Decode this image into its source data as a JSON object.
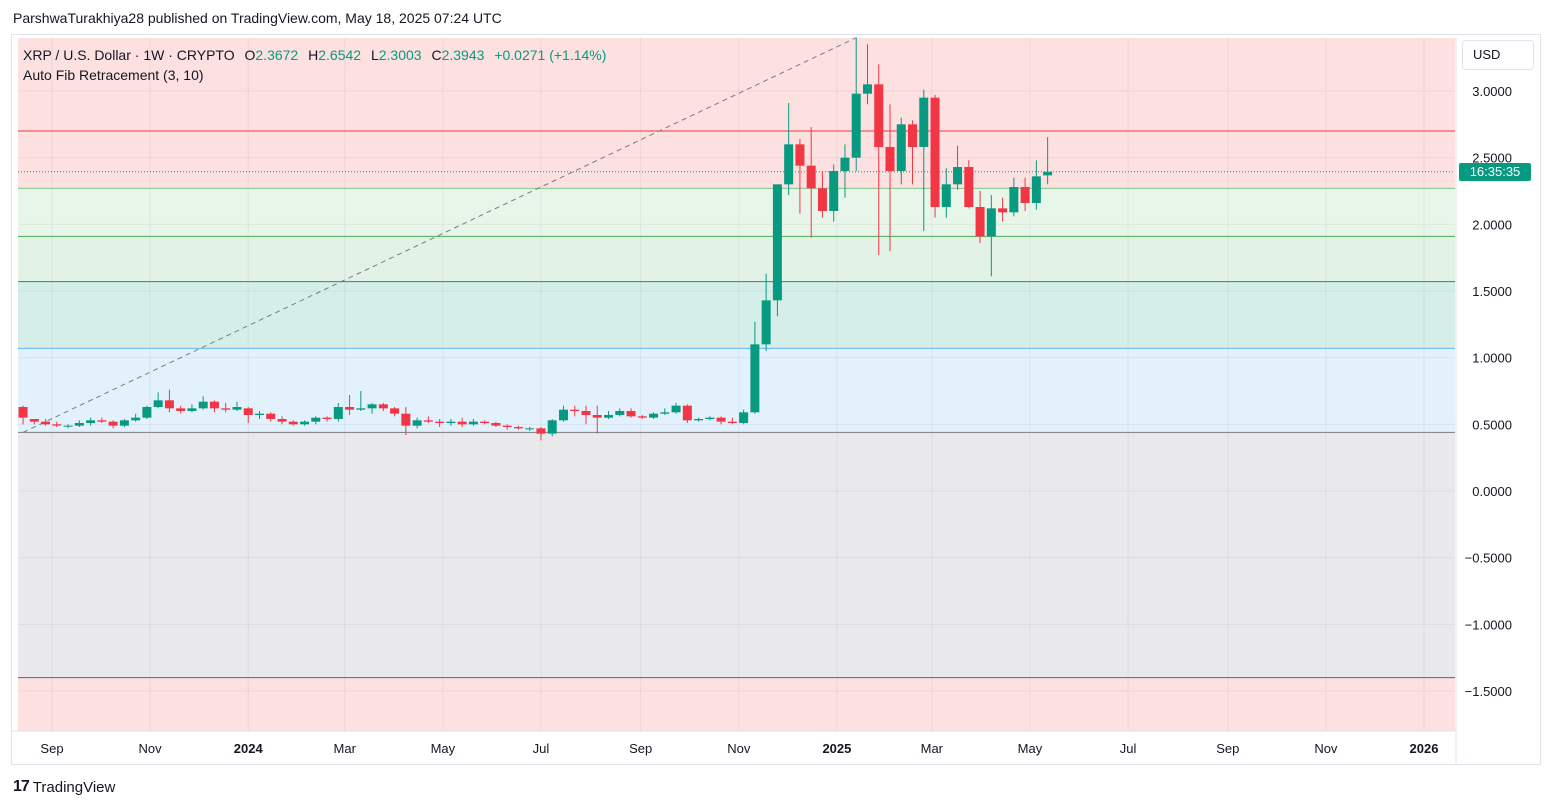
{
  "publisher": "ParshwaTurakhiya28 published on TradingView.com, May 18, 2025 07:24 UTC",
  "legend": {
    "symbol": "XRP / U.S. Dollar · 1W · CRYPTO",
    "open_label": "O",
    "open": "2.3672",
    "high_label": "H",
    "high": "2.6542",
    "low_label": "L",
    "low": "2.3003",
    "close_label": "C",
    "close": "2.3943",
    "change": "+0.0271 (+1.14%)",
    "indicator": "Auto Fib Retracement (3, 10)"
  },
  "currency": "USD",
  "countdown": "16:35:35",
  "footer": {
    "logo": "17",
    "brand": "TradingView"
  },
  "colors": {
    "up": "#089981",
    "down": "#f23645",
    "countdown_bg": "#089981"
  },
  "chart_data": {
    "type": "candlestick",
    "interval": "1W",
    "ylim": [
      -1.9,
      3.4
    ],
    "y_ticks": [
      "3.0000",
      "2.5000",
      "2.0000",
      "1.5000",
      "1.0000",
      "0.5000",
      "0.0000",
      "−0.5000",
      "−1.0000",
      "−1.5000"
    ],
    "y_tick_values": [
      3.0,
      2.5,
      2.0,
      1.5,
      1.0,
      0.5,
      0.0,
      -0.5,
      -1.0,
      -1.5
    ],
    "x_ticks": [
      {
        "label": "Sep",
        "date": "2023-09-01",
        "bold": false
      },
      {
        "label": "Nov",
        "date": "2023-11-01",
        "bold": false
      },
      {
        "label": "2024",
        "date": "2024-01-01",
        "bold": true
      },
      {
        "label": "Mar",
        "date": "2024-03-01",
        "bold": false
      },
      {
        "label": "May",
        "date": "2024-05-01",
        "bold": false
      },
      {
        "label": "Jul",
        "date": "2024-07-01",
        "bold": false
      },
      {
        "label": "Sep",
        "date": "2024-09-01",
        "bold": false
      },
      {
        "label": "Nov",
        "date": "2024-11-01",
        "bold": false
      },
      {
        "label": "2025",
        "date": "2025-01-01",
        "bold": true
      },
      {
        "label": "Mar",
        "date": "2025-03-01",
        "bold": false
      },
      {
        "label": "May",
        "date": "2025-05-01",
        "bold": false
      },
      {
        "label": "Jul",
        "date": "2025-07-01",
        "bold": false
      },
      {
        "label": "Sep",
        "date": "2025-09-01",
        "bold": false
      },
      {
        "label": "Nov",
        "date": "2025-11-01",
        "bold": false
      },
      {
        "label": "2026",
        "date": "2026-01-01",
        "bold": true
      }
    ],
    "fib_levels": [
      {
        "price": 2.7,
        "color": "#f23645",
        "fill": "#fde0e0"
      },
      {
        "price": 2.27,
        "color": "#81c784",
        "fill": "#e8f5e9"
      },
      {
        "price": 1.91,
        "color": "#4caf50",
        "fill": "#e3f2e6"
      },
      {
        "price": 1.57,
        "color": "#089981",
        "fill": "#d6eee9"
      },
      {
        "price": 1.07,
        "color": "#64b5f6",
        "fill": "#e3f1fc"
      },
      {
        "price": 0.44,
        "color": "#787b86",
        "fill": "#e9e9ec"
      },
      {
        "price": -1.4,
        "color": "#2962ff",
        "fill": "#e0e6fd"
      }
    ],
    "top_fill": "#fde0e0",
    "bottom_fill": "#fde0e0",
    "trend_line": {
      "from": {
        "date": "2023-08-14",
        "price": 0.44
      },
      "to": {
        "date": "2025-01-13",
        "price": 3.4
      }
    },
    "last_price_line": 2.3943,
    "candles": [
      [
        "2023-08-14",
        0.63,
        0.64,
        0.5,
        0.55
      ],
      [
        "2023-08-21",
        0.54,
        0.54,
        0.5,
        0.52
      ],
      [
        "2023-08-28",
        0.52,
        0.54,
        0.49,
        0.5
      ],
      [
        "2023-09-04",
        0.5,
        0.52,
        0.48,
        0.49
      ],
      [
        "2023-09-11",
        0.49,
        0.5,
        0.47,
        0.49
      ],
      [
        "2023-09-18",
        0.49,
        0.53,
        0.48,
        0.51
      ],
      [
        "2023-09-25",
        0.51,
        0.55,
        0.49,
        0.53
      ],
      [
        "2023-10-02",
        0.53,
        0.55,
        0.51,
        0.52
      ],
      [
        "2023-10-09",
        0.52,
        0.53,
        0.47,
        0.49
      ],
      [
        "2023-10-16",
        0.49,
        0.54,
        0.48,
        0.53
      ],
      [
        "2023-10-23",
        0.53,
        0.58,
        0.52,
        0.55
      ],
      [
        "2023-10-30",
        0.55,
        0.64,
        0.54,
        0.63
      ],
      [
        "2023-11-06",
        0.63,
        0.74,
        0.62,
        0.68
      ],
      [
        "2023-11-13",
        0.68,
        0.76,
        0.59,
        0.62
      ],
      [
        "2023-11-20",
        0.62,
        0.64,
        0.58,
        0.6
      ],
      [
        "2023-11-27",
        0.6,
        0.65,
        0.59,
        0.62
      ],
      [
        "2023-12-04",
        0.62,
        0.71,
        0.61,
        0.67
      ],
      [
        "2023-12-11",
        0.67,
        0.68,
        0.59,
        0.62
      ],
      [
        "2023-12-18",
        0.62,
        0.66,
        0.59,
        0.61
      ],
      [
        "2023-12-25",
        0.61,
        0.67,
        0.6,
        0.63
      ],
      [
        "2024-01-01",
        0.62,
        0.63,
        0.51,
        0.57
      ],
      [
        "2024-01-08",
        0.57,
        0.6,
        0.54,
        0.58
      ],
      [
        "2024-01-15",
        0.58,
        0.59,
        0.52,
        0.54
      ],
      [
        "2024-01-22",
        0.54,
        0.56,
        0.5,
        0.52
      ],
      [
        "2024-01-29",
        0.52,
        0.53,
        0.49,
        0.5
      ],
      [
        "2024-02-05",
        0.5,
        0.53,
        0.49,
        0.52
      ],
      [
        "2024-02-12",
        0.52,
        0.56,
        0.5,
        0.55
      ],
      [
        "2024-02-19",
        0.55,
        0.56,
        0.52,
        0.54
      ],
      [
        "2024-02-26",
        0.54,
        0.66,
        0.52,
        0.63
      ],
      [
        "2024-03-04",
        0.63,
        0.72,
        0.57,
        0.61
      ],
      [
        "2024-03-11",
        0.61,
        0.75,
        0.6,
        0.62
      ],
      [
        "2024-03-18",
        0.62,
        0.66,
        0.58,
        0.65
      ],
      [
        "2024-03-25",
        0.65,
        0.66,
        0.6,
        0.62
      ],
      [
        "2024-04-01",
        0.62,
        0.63,
        0.56,
        0.58
      ],
      [
        "2024-04-08",
        0.58,
        0.63,
        0.42,
        0.49
      ],
      [
        "2024-04-15",
        0.49,
        0.55,
        0.47,
        0.53
      ],
      [
        "2024-04-22",
        0.53,
        0.56,
        0.51,
        0.52
      ],
      [
        "2024-04-29",
        0.52,
        0.54,
        0.48,
        0.51
      ],
      [
        "2024-05-06",
        0.51,
        0.54,
        0.49,
        0.52
      ],
      [
        "2024-05-13",
        0.52,
        0.55,
        0.48,
        0.5
      ],
      [
        "2024-05-20",
        0.5,
        0.54,
        0.49,
        0.52
      ],
      [
        "2024-05-27",
        0.52,
        0.53,
        0.5,
        0.51
      ],
      [
        "2024-06-03",
        0.51,
        0.52,
        0.48,
        0.49
      ],
      [
        "2024-06-10",
        0.49,
        0.5,
        0.46,
        0.48
      ],
      [
        "2024-06-17",
        0.48,
        0.49,
        0.46,
        0.47
      ],
      [
        "2024-06-24",
        0.47,
        0.48,
        0.45,
        0.47
      ],
      [
        "2024-07-01",
        0.47,
        0.48,
        0.38,
        0.43
      ],
      [
        "2024-07-08",
        0.43,
        0.54,
        0.41,
        0.53
      ],
      [
        "2024-07-15",
        0.53,
        0.64,
        0.52,
        0.61
      ],
      [
        "2024-07-22",
        0.61,
        0.64,
        0.56,
        0.6
      ],
      [
        "2024-07-29",
        0.6,
        0.64,
        0.5,
        0.57
      ],
      [
        "2024-08-05",
        0.57,
        0.64,
        0.43,
        0.55
      ],
      [
        "2024-08-12",
        0.55,
        0.6,
        0.54,
        0.57
      ],
      [
        "2024-08-19",
        0.57,
        0.62,
        0.56,
        0.6
      ],
      [
        "2024-08-26",
        0.6,
        0.62,
        0.55,
        0.56
      ],
      [
        "2024-09-02",
        0.56,
        0.57,
        0.54,
        0.55
      ],
      [
        "2024-09-09",
        0.55,
        0.59,
        0.54,
        0.58
      ],
      [
        "2024-09-16",
        0.58,
        0.62,
        0.57,
        0.59
      ],
      [
        "2024-09-23",
        0.59,
        0.66,
        0.58,
        0.64
      ],
      [
        "2024-09-30",
        0.64,
        0.65,
        0.51,
        0.53
      ],
      [
        "2024-10-07",
        0.53,
        0.55,
        0.52,
        0.54
      ],
      [
        "2024-10-14",
        0.54,
        0.56,
        0.53,
        0.55
      ],
      [
        "2024-10-21",
        0.55,
        0.56,
        0.5,
        0.52
      ],
      [
        "2024-10-28",
        0.52,
        0.55,
        0.5,
        0.51
      ],
      [
        "2024-11-04",
        0.51,
        0.61,
        0.5,
        0.59
      ],
      [
        "2024-11-11",
        0.59,
        1.27,
        0.58,
        1.1
      ],
      [
        "2024-11-18",
        1.1,
        1.63,
        1.05,
        1.43
      ],
      [
        "2024-11-25",
        1.43,
        2.3,
        1.31,
        2.3
      ],
      [
        "2024-12-02",
        2.3,
        2.91,
        2.22,
        2.6
      ],
      [
        "2024-12-09",
        2.6,
        2.64,
        2.08,
        2.44
      ],
      [
        "2024-12-16",
        2.44,
        2.73,
        1.9,
        2.27
      ],
      [
        "2024-12-23",
        2.27,
        2.4,
        2.05,
        2.1
      ],
      [
        "2024-12-30",
        2.1,
        2.45,
        2.02,
        2.4
      ],
      [
        "2025-01-06",
        2.4,
        2.6,
        2.2,
        2.5
      ],
      [
        "2025-01-13",
        2.5,
        3.4,
        2.4,
        2.98
      ],
      [
        "2025-01-20",
        2.98,
        3.35,
        2.9,
        3.05
      ],
      [
        "2025-01-27",
        3.05,
        3.2,
        1.77,
        2.58
      ],
      [
        "2025-02-03",
        2.58,
        2.9,
        1.8,
        2.4
      ],
      [
        "2025-02-10",
        2.4,
        2.8,
        2.3,
        2.75
      ],
      [
        "2025-02-17",
        2.75,
        2.78,
        2.3,
        2.58
      ],
      [
        "2025-02-24",
        2.58,
        3.01,
        1.95,
        2.95
      ],
      [
        "2025-03-03",
        2.95,
        2.97,
        2.05,
        2.13
      ],
      [
        "2025-03-10",
        2.13,
        2.42,
        2.05,
        2.3
      ],
      [
        "2025-03-17",
        2.3,
        2.59,
        2.26,
        2.43
      ],
      [
        "2025-03-24",
        2.43,
        2.48,
        2.12,
        2.13
      ],
      [
        "2025-03-31",
        2.13,
        2.25,
        1.86,
        1.91
      ],
      [
        "2025-04-07",
        1.91,
        2.22,
        1.61,
        2.12
      ],
      [
        "2025-04-14",
        2.12,
        2.2,
        2.02,
        2.09
      ],
      [
        "2025-04-21",
        2.09,
        2.35,
        2.06,
        2.28
      ],
      [
        "2025-04-28",
        2.28,
        2.35,
        2.1,
        2.16
      ],
      [
        "2025-05-05",
        2.16,
        2.48,
        2.11,
        2.36
      ],
      [
        "2025-05-12",
        2.3672,
        2.6542,
        2.3003,
        2.3943
      ]
    ]
  }
}
